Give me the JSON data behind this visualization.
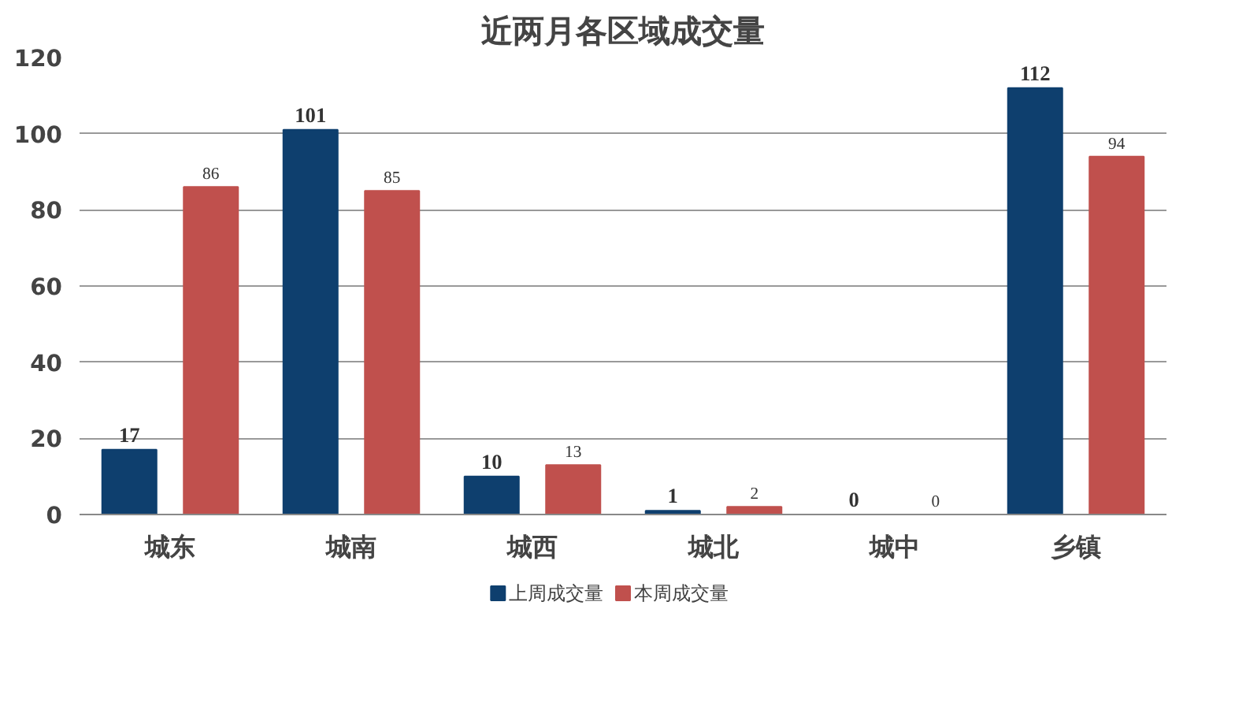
{
  "chart_data": {
    "type": "bar",
    "title": "近两月各区域成交量",
    "categories": [
      "城东",
      "城南",
      "城西",
      "城北",
      "城中",
      "乡镇"
    ],
    "series": [
      {
        "name": "上周成交量",
        "color": "#0e3f6e",
        "values": [
          17,
          101,
          10,
          1,
          0,
          112
        ]
      },
      {
        "name": "本周成交量",
        "color": "#c0504d",
        "values": [
          86,
          85,
          13,
          2,
          0,
          94
        ]
      }
    ],
    "ylim": [
      0,
      120
    ],
    "yticks": [
      0,
      20,
      40,
      60,
      80,
      100,
      120
    ],
    "grid": "y",
    "legend": "bottom",
    "data_labels": true
  }
}
